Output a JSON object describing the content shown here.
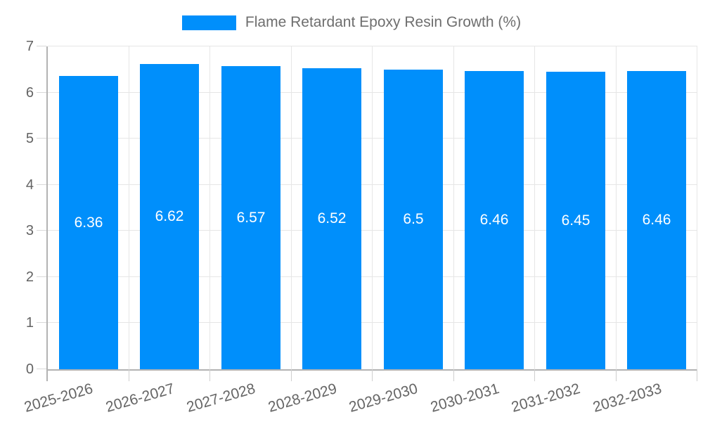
{
  "chart_data": {
    "type": "bar",
    "title": "",
    "legend_label": "Flame Retardant Epoxy Resin Growth (%)",
    "legend_position": "top",
    "categories": [
      "2025-2026",
      "2026-2027",
      "2027-2028",
      "2028-2029",
      "2029-2030",
      "2030-2031",
      "2031-2032",
      "2032-2033"
    ],
    "values": [
      6.36,
      6.62,
      6.57,
      6.52,
      6.5,
      6.46,
      6.45,
      6.46
    ],
    "value_labels": [
      "6.36",
      "6.62",
      "6.57",
      "6.52",
      "6.5",
      "6.46",
      "6.45",
      "6.46"
    ],
    "xlabel": "",
    "ylabel": "",
    "ylim": [
      0,
      7
    ],
    "yticks": [
      "0",
      "1",
      "2",
      "3",
      "4",
      "5",
      "6",
      "7"
    ],
    "grid": true,
    "colors": {
      "bar": "#008FFB",
      "bar_value_text": "#FFFFFF",
      "axis_label": "#636363",
      "xaxis_label": "#666666",
      "legend_text": "#6E6E6E",
      "gridline": "#E6E6E6",
      "axis_line": "#B3B3B3",
      "tick": "#CFCFCF",
      "background": "#FFFFFF"
    }
  }
}
